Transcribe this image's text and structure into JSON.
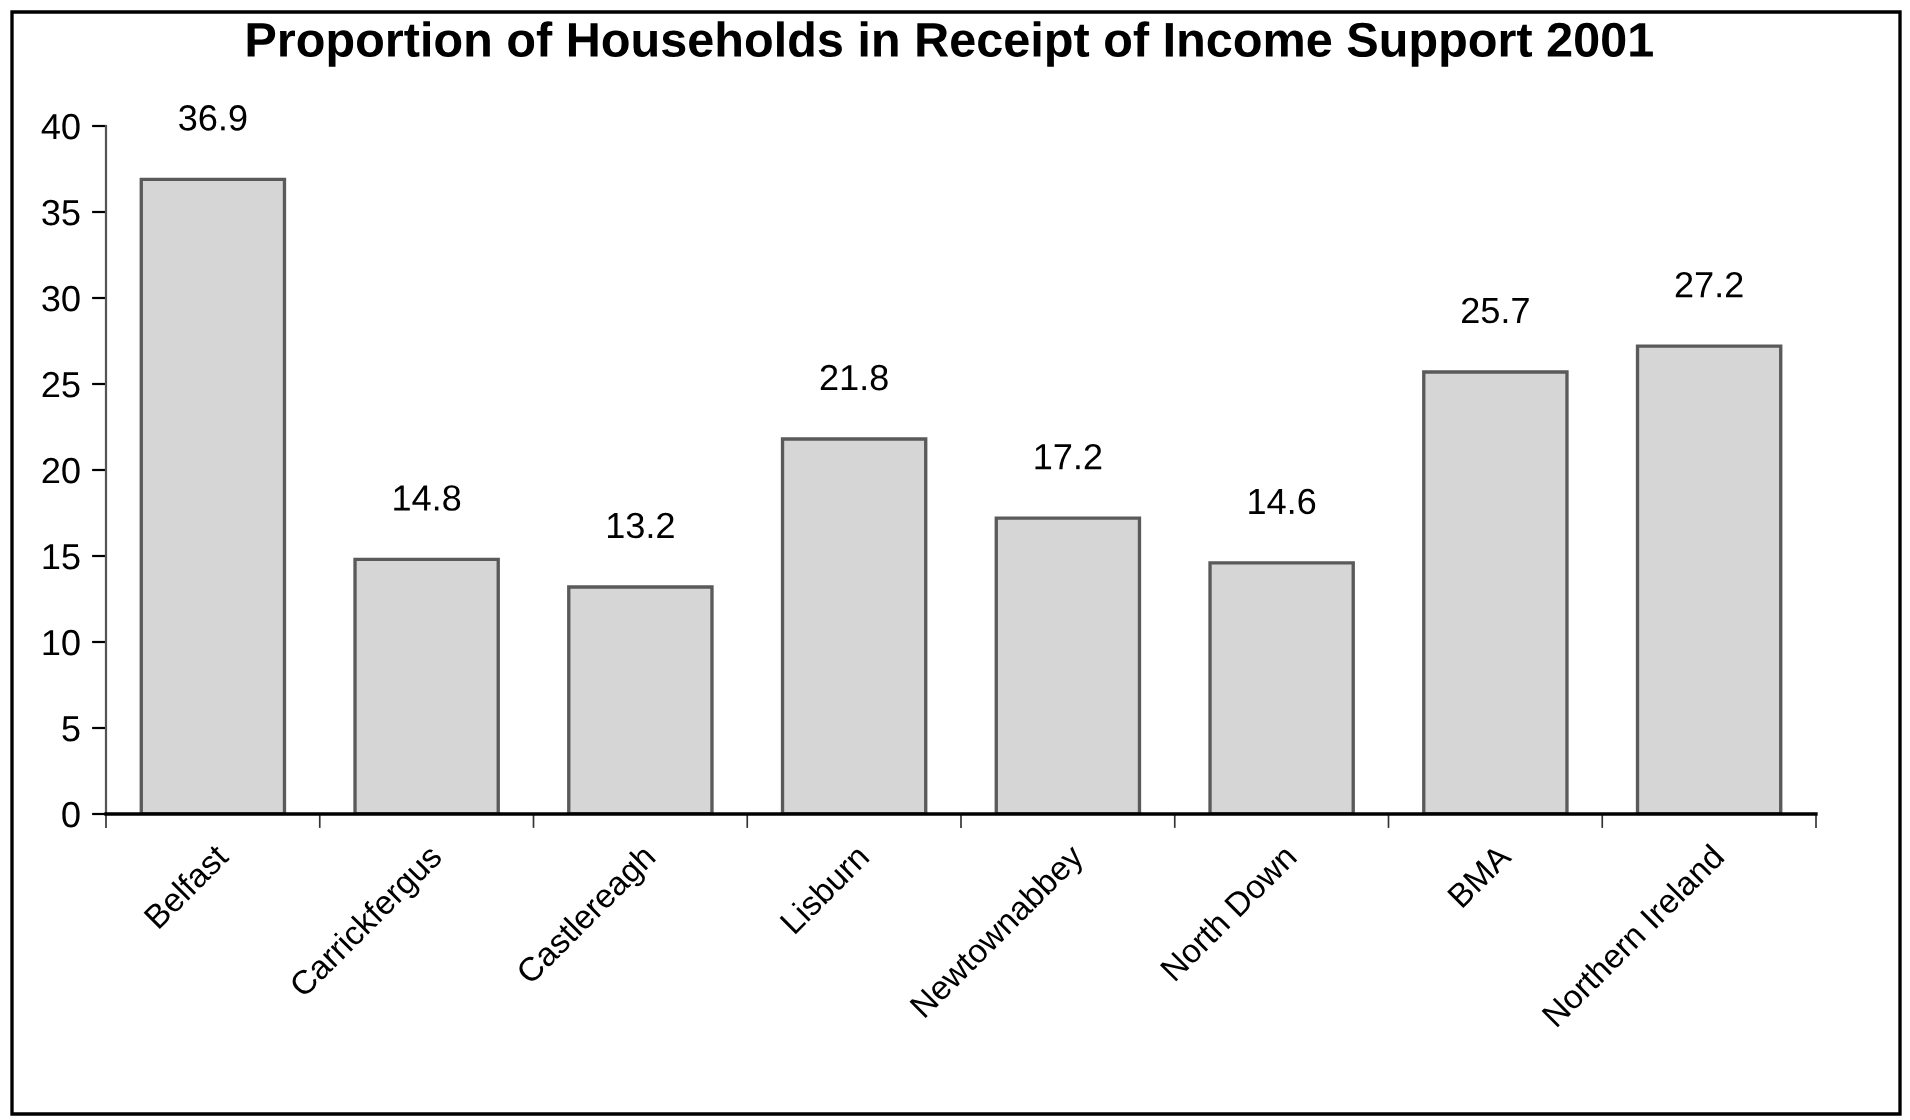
{
  "chart_data": {
    "type": "bar",
    "title": "Proportion of Households in Receipt of Income Support 2001",
    "categories": [
      "Belfast",
      "Carrickfergus",
      "Castlereagh",
      "Lisburn",
      "Newtownabbey",
      "North Down",
      "BMA",
      "Northern Ireland"
    ],
    "values": [
      36.9,
      14.8,
      13.2,
      21.8,
      17.2,
      14.6,
      25.7,
      27.2
    ],
    "color": "#d6d6d6",
    "ylim": [
      0,
      40
    ],
    "yticks": [
      0,
      5,
      10,
      15,
      20,
      25,
      30,
      35,
      40
    ],
    "data_labels": true
  }
}
